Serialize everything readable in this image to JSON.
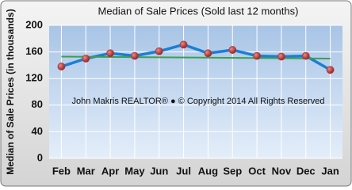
{
  "chart_data": {
    "type": "line",
    "title": "Median of Sale Prices (Sold last 12 months)",
    "y_label": "Median of Sale Prices (in thousands)",
    "annotation": "John Makris REALTOR® ● © Copyright 2014 All Rights Reserved",
    "categories": [
      "Feb",
      "Mar",
      "Apr",
      "May",
      "Jun",
      "Jul",
      "Aug",
      "Sep",
      "Oct",
      "Nov",
      "Dec",
      "Jan"
    ],
    "series": [
      {
        "color": "#1a7fd4",
        "marker_color": "#b03535",
        "values": [
          138,
          150,
          158,
          154,
          161,
          171,
          158,
          163,
          154,
          153,
          154,
          133
        ]
      }
    ],
    "trendline": {
      "color": "#3aa050",
      "values": [
        153,
        150
      ]
    },
    "ylim": [
      0,
      200
    ],
    "yticks": [
      0,
      40,
      80,
      120,
      160,
      200
    ],
    "grid": true
  }
}
